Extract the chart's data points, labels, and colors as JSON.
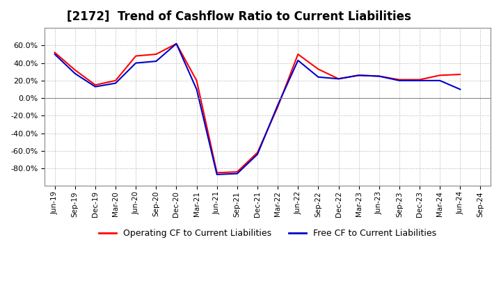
{
  "title": "[2172]  Trend of Cashflow Ratio to Current Liabilities",
  "labels": [
    "Jun-19",
    "Sep-19",
    "Dec-19",
    "Mar-20",
    "Jun-20",
    "Sep-20",
    "Dec-20",
    "Mar-21",
    "Jun-21",
    "Sep-21",
    "Dec-21",
    "Mar-22",
    "Jun-22",
    "Sep-22",
    "Dec-22",
    "Mar-23",
    "Jun-23",
    "Sep-23",
    "Dec-23",
    "Mar-24",
    "Jun-24",
    "Sep-24"
  ],
  "operating_cf": [
    52,
    32,
    15,
    20,
    48,
    50,
    62,
    20,
    -85,
    -84,
    -62,
    -10,
    50,
    33,
    22,
    26,
    25,
    21,
    21,
    26,
    27,
    null
  ],
  "free_cf": [
    50,
    28,
    13,
    17,
    40,
    42,
    62,
    10,
    -87,
    -86,
    -64,
    -8,
    43,
    24,
    22,
    26,
    25,
    20,
    20,
    20,
    10,
    null
  ],
  "operating_color": "#ff0000",
  "free_color": "#0000cc",
  "ylim": [
    -100,
    80
  ],
  "yticks": [
    -80,
    -60,
    -40,
    -20,
    0,
    20,
    40,
    60
  ],
  "background_color": "#ffffff",
  "plot_area_color": "#ffffff",
  "grid_color": "#aaaaaa",
  "legend_operating": "Operating CF to Current Liabilities",
  "legend_free": "Free CF to Current Liabilities"
}
